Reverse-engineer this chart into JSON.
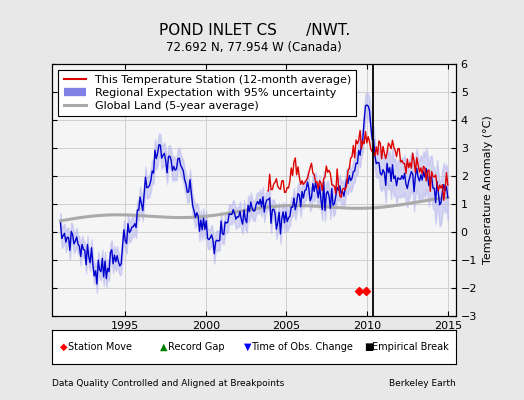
{
  "title": "POND INLET CS      /NWT.",
  "subtitle": "72.692 N, 77.954 W (Canada)",
  "xlabel_left": "Data Quality Controlled and Aligned at Breakpoints",
  "xlabel_right": "Berkeley Earth",
  "ylabel": "Temperature Anomaly (°C)",
  "xlim": [
    1990.5,
    2015.5
  ],
  "ylim": [
    -3.0,
    6.0
  ],
  "yticks": [
    -3,
    -2,
    -1,
    0,
    1,
    2,
    3,
    4,
    5,
    6
  ],
  "xticks": [
    1995,
    2000,
    2005,
    2010,
    2015
  ],
  "vertical_line_x": 2010.35,
  "background_color": "#e8e8e8",
  "plot_bg_color": "#f5f5f5",
  "grid_color": "#d0d0d0",
  "red_line_color": "#dd0000",
  "blue_line_color": "#0000cc",
  "blue_fill_color": "#b8b8f0",
  "gray_line_color": "#aaaaaa",
  "vline_color": "#000000",
  "legend_fontsize": 8.0,
  "title_fontsize": 11,
  "subtitle_fontsize": 8.5,
  "axis_fontsize": 8
}
